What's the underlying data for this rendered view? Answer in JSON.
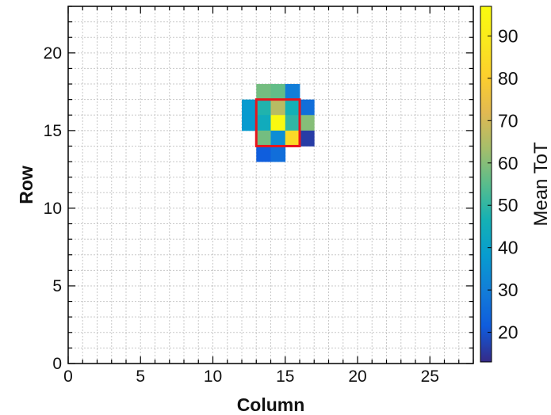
{
  "chart_data": {
    "type": "heatmap",
    "xlabel": "Column",
    "ylabel": "Row",
    "xlim": [
      0,
      28
    ],
    "ylim": [
      0,
      23
    ],
    "x_ticks": [
      0,
      5,
      10,
      15,
      20,
      25
    ],
    "y_ticks": [
      0,
      5,
      10,
      15,
      20
    ],
    "grid": true,
    "colorbar": {
      "label": "Mean ToT",
      "range": [
        13,
        97
      ],
      "ticks": [
        20,
        30,
        40,
        50,
        60,
        70,
        80,
        90
      ],
      "colormap": "parula"
    },
    "cells": [
      {
        "col": 13,
        "row": 17,
        "value": 58
      },
      {
        "col": 14,
        "row": 17,
        "value": 56
      },
      {
        "col": 15,
        "row": 17,
        "value": 30
      },
      {
        "col": 12,
        "row": 16,
        "value": 38
      },
      {
        "col": 13,
        "row": 16,
        "value": 48
      },
      {
        "col": 14,
        "row": 16,
        "value": 66
      },
      {
        "col": 15,
        "row": 16,
        "value": 46
      },
      {
        "col": 16,
        "row": 16,
        "value": 26
      },
      {
        "col": 12,
        "row": 15,
        "value": 38
      },
      {
        "col": 13,
        "row": 15,
        "value": 44
      },
      {
        "col": 14,
        "row": 15,
        "value": 96
      },
      {
        "col": 15,
        "row": 15,
        "value": 50
      },
      {
        "col": 16,
        "row": 15,
        "value": 60
      },
      {
        "col": 13,
        "row": 14,
        "value": 58
      },
      {
        "col": 14,
        "row": 14,
        "value": 34
      },
      {
        "col": 15,
        "row": 14,
        "value": 84
      },
      {
        "col": 16,
        "row": 14,
        "value": 16
      },
      {
        "col": 13,
        "row": 13,
        "value": 22
      },
      {
        "col": 14,
        "row": 13,
        "value": 26
      }
    ],
    "highlight_box": {
      "col_min": 13,
      "col_max": 16,
      "row_min": 14,
      "row_max": 17,
      "color": "#e8141c"
    }
  }
}
